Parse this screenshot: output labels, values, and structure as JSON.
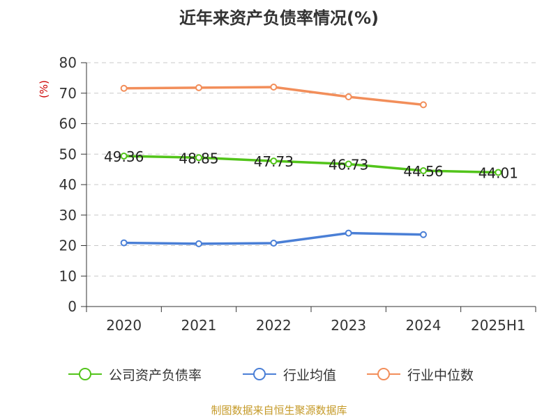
{
  "title": "近年来资产负债率情况(%)",
  "source": "制图数据来自恒生聚源数据库",
  "chart_data": {
    "type": "line",
    "title": "近年来资产负债率情况(%)",
    "xlabel": "",
    "ylabel": "(%)",
    "ylim": [
      0,
      80
    ],
    "yticks": [
      0,
      10,
      20,
      30,
      40,
      50,
      60,
      70,
      80
    ],
    "categories": [
      "2020",
      "2021",
      "2022",
      "2023",
      "2024",
      "2025H1"
    ],
    "grid": true,
    "legend_position": "bottom",
    "series": [
      {
        "name": "公司资产负债率",
        "color": "#52c41a",
        "values": [
          49.36,
          48.85,
          47.73,
          46.73,
          44.56,
          44.01
        ],
        "labels": [
          "49.36",
          "48.85",
          "47.73",
          "46.73",
          "44.56",
          "44.01"
        ]
      },
      {
        "name": "行业均值",
        "color": "#4a7fd6",
        "values": [
          20.9,
          20.6,
          20.8,
          24.1,
          23.6,
          null
        ]
      },
      {
        "name": "行业中位数",
        "color": "#f28e5a",
        "values": [
          71.6,
          71.8,
          72.0,
          68.8,
          66.2,
          null
        ]
      }
    ]
  }
}
